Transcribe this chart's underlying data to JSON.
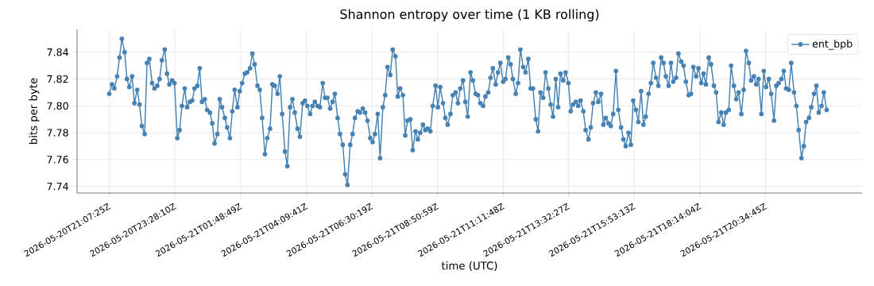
{
  "chart_data": {
    "type": "line",
    "title": "Shannon entropy over time (1 KB rolling)",
    "xlabel": "time (UTC)",
    "ylabel": "bits per byte",
    "xlim": [
      "2026-05-20T19:58",
      "2026-05-22T00:02"
    ],
    "ylim": [
      7.735,
      7.857
    ],
    "xticks": [
      {
        "value": "2026-05-20T21:07",
        "label": "2026-05-20T21:07:25Z"
      },
      {
        "value": "2026-05-20T23:28",
        "label": "2026-05-20T23:28:10Z"
      },
      {
        "value": "2026-05-21T01:49",
        "label": "2026-05-21T01:48:49Z"
      },
      {
        "value": "2026-05-21T04:10",
        "label": "2026-05-21T04:09:41Z"
      },
      {
        "value": "2026-05-21T06:30",
        "label": "2026-05-21T06:30:19Z"
      },
      {
        "value": "2026-05-21T08:51",
        "label": "2026-05-21T08:50:59Z"
      },
      {
        "value": "2026-05-21T11:12",
        "label": "2026-05-21T11:11:48Z"
      },
      {
        "value": "2026-05-21T13:32",
        "label": "2026-05-21T13:32:27Z"
      },
      {
        "value": "2026-05-21T15:53",
        "label": "2026-05-21T15:53:13Z"
      },
      {
        "value": "2026-05-21T18:14",
        "label": "2026-05-21T18:14:04Z"
      },
      {
        "value": "2026-05-21T20:35",
        "label": "2026-05-21T20:34:45Z"
      }
    ],
    "yticks": [
      7.74,
      7.76,
      7.78,
      {
        "value": 7.8,
        "label": "7.80"
      },
      7.82,
      7.84
    ],
    "grid": true,
    "legend": "top right",
    "marker": "circle",
    "line_style": "solid",
    "x": [
      "2026-05-20T21:07",
      "2026-05-20T21:13",
      "2026-05-20T21:18",
      "2026-05-20T21:24",
      "2026-05-20T21:29",
      "2026-05-20T21:34",
      "2026-05-20T21:40",
      "2026-05-20T21:45",
      "2026-05-20T21:50",
      "2026-05-20T21:56",
      "2026-05-20T22:01",
      "2026-05-20T22:07",
      "2026-05-20T22:12",
      "2026-05-20T22:17",
      "2026-05-20T22:23",
      "2026-05-20T22:28",
      "2026-05-20T22:33",
      "2026-05-20T22:39",
      "2026-05-20T22:44",
      "2026-05-20T22:50",
      "2026-05-20T22:55",
      "2026-05-20T23:00",
      "2026-05-20T23:06",
      "2026-05-20T23:11",
      "2026-05-20T23:16",
      "2026-05-20T23:22",
      "2026-05-20T23:27",
      "2026-05-20T23:33",
      "2026-05-20T23:38",
      "2026-05-20T23:43",
      "2026-05-20T23:49",
      "2026-05-20T23:54",
      "2026-05-21T00:00",
      "2026-05-21T00:05",
      "2026-05-21T00:10",
      "2026-05-21T00:16",
      "2026-05-21T00:21",
      "2026-05-21T00:26",
      "2026-05-21T00:32",
      "2026-05-21T00:37",
      "2026-05-21T00:43",
      "2026-05-21T00:48",
      "2026-05-21T00:53",
      "2026-05-21T00:59",
      "2026-05-21T01:04",
      "2026-05-21T01:09",
      "2026-05-21T01:15",
      "2026-05-21T01:20",
      "2026-05-21T01:26",
      "2026-05-21T01:31",
      "2026-05-21T01:36",
      "2026-05-21T01:42",
      "2026-05-21T01:47",
      "2026-05-21T01:52",
      "2026-05-21T01:58",
      "2026-05-21T02:03",
      "2026-05-21T02:09",
      "2026-05-21T02:14",
      "2026-05-21T02:19",
      "2026-05-21T02:25",
      "2026-05-21T02:30",
      "2026-05-21T02:35",
      "2026-05-21T02:41",
      "2026-05-21T02:46",
      "2026-05-21T02:52",
      "2026-05-21T02:57",
      "2026-05-21T03:02",
      "2026-05-21T03:08",
      "2026-05-21T03:13",
      "2026-05-21T03:18",
      "2026-05-21T03:24",
      "2026-05-21T03:29",
      "2026-05-21T03:35",
      "2026-05-21T03:40",
      "2026-05-21T03:45",
      "2026-05-21T03:51",
      "2026-05-21T03:56",
      "2026-05-21T04:02",
      "2026-05-21T04:07",
      "2026-05-21T04:12",
      "2026-05-21T04:18",
      "2026-05-21T04:23",
      "2026-05-21T04:28",
      "2026-05-21T04:34",
      "2026-05-21T04:39",
      "2026-05-21T04:45",
      "2026-05-21T04:50",
      "2026-05-21T04:55",
      "2026-05-21T05:01",
      "2026-05-21T05:06",
      "2026-05-21T05:11",
      "2026-05-21T05:17",
      "2026-05-21T05:22",
      "2026-05-21T05:28",
      "2026-05-21T05:33",
      "2026-05-21T05:38",
      "2026-05-21T05:44",
      "2026-05-21T05:49",
      "2026-05-21T05:54",
      "2026-05-21T06:00",
      "2026-05-21T06:05",
      "2026-05-21T06:11",
      "2026-05-21T06:16",
      "2026-05-21T06:21",
      "2026-05-21T06:27",
      "2026-05-21T06:32",
      "2026-05-21T06:37",
      "2026-05-21T06:43",
      "2026-05-21T06:48",
      "2026-05-21T06:54",
      "2026-05-21T06:59",
      "2026-05-21T07:04",
      "2026-05-21T07:10",
      "2026-05-21T07:15",
      "2026-05-21T07:21",
      "2026-05-21T07:26",
      "2026-05-21T07:31",
      "2026-05-21T07:37",
      "2026-05-21T07:42",
      "2026-05-21T07:47",
      "2026-05-21T07:53",
      "2026-05-21T07:58",
      "2026-05-21T08:04",
      "2026-05-21T08:09",
      "2026-05-21T08:14",
      "2026-05-21T08:20",
      "2026-05-21T08:25",
      "2026-05-21T08:30",
      "2026-05-21T08:36",
      "2026-05-21T08:41",
      "2026-05-21T08:47",
      "2026-05-21T08:52",
      "2026-05-21T08:57",
      "2026-05-21T09:03",
      "2026-05-21T09:08",
      "2026-05-21T09:13",
      "2026-05-21T09:19",
      "2026-05-21T09:24",
      "2026-05-21T09:30",
      "2026-05-21T09:35",
      "2026-05-21T09:40",
      "2026-05-21T09:46",
      "2026-05-21T09:51",
      "2026-05-21T09:56",
      "2026-05-21T10:02",
      "2026-05-21T10:07",
      "2026-05-21T10:13",
      "2026-05-21T10:18",
      "2026-05-21T10:23",
      "2026-05-21T10:29",
      "2026-05-21T10:34",
      "2026-05-21T10:40",
      "2026-05-21T10:45",
      "2026-05-21T10:50",
      "2026-05-21T10:56",
      "2026-05-21T11:01",
      "2026-05-21T11:06",
      "2026-05-21T11:12",
      "2026-05-21T11:17",
      "2026-05-21T11:23",
      "2026-05-21T11:28",
      "2026-05-21T11:33",
      "2026-05-21T11:39",
      "2026-05-21T11:44",
      "2026-05-21T11:49",
      "2026-05-21T11:55",
      "2026-05-21T12:00",
      "2026-05-21T12:06",
      "2026-05-21T12:11",
      "2026-05-21T12:16",
      "2026-05-21T12:22",
      "2026-05-21T12:27",
      "2026-05-21T12:32",
      "2026-05-21T12:38",
      "2026-05-21T12:43",
      "2026-05-21T12:49",
      "2026-05-21T12:54",
      "2026-05-21T12:59",
      "2026-05-21T13:05",
      "2026-05-21T13:10",
      "2026-05-21T13:15",
      "2026-05-21T13:21",
      "2026-05-21T13:26",
      "2026-05-21T13:32",
      "2026-05-21T13:37",
      "2026-05-21T13:42",
      "2026-05-21T13:48",
      "2026-05-21T13:53",
      "2026-05-21T13:58",
      "2026-05-21T14:04",
      "2026-05-21T14:09",
      "2026-05-21T14:15",
      "2026-05-21T14:20",
      "2026-05-21T14:25",
      "2026-05-21T14:31",
      "2026-05-21T14:36",
      "2026-05-21T14:42",
      "2026-05-21T14:47",
      "2026-05-21T14:52",
      "2026-05-21T14:58",
      "2026-05-21T15:03",
      "2026-05-21T15:08",
      "2026-05-21T15:14",
      "2026-05-21T15:19",
      "2026-05-21T15:25",
      "2026-05-21T15:30",
      "2026-05-21T15:35",
      "2026-05-21T15:41",
      "2026-05-21T15:46",
      "2026-05-21T15:51",
      "2026-05-21T15:57",
      "2026-05-21T16:02",
      "2026-05-21T16:08",
      "2026-05-21T16:13",
      "2026-05-21T16:18",
      "2026-05-21T16:24",
      "2026-05-21T16:29",
      "2026-05-21T16:34",
      "2026-05-21T16:40",
      "2026-05-21T16:45",
      "2026-05-21T16:51",
      "2026-05-21T16:56",
      "2026-05-21T17:01",
      "2026-05-21T17:07",
      "2026-05-21T17:12",
      "2026-05-21T17:17",
      "2026-05-21T17:23",
      "2026-05-21T17:28",
      "2026-05-21T17:34",
      "2026-05-21T17:39",
      "2026-05-21T17:44",
      "2026-05-21T17:50",
      "2026-05-21T17:55",
      "2026-05-21T18:00",
      "2026-05-21T18:06",
      "2026-05-21T18:11",
      "2026-05-21T18:17",
      "2026-05-21T18:22",
      "2026-05-21T18:27",
      "2026-05-21T18:33",
      "2026-05-21T18:38",
      "2026-05-21T18:44",
      "2026-05-21T18:49",
      "2026-05-21T18:54",
      "2026-05-21T19:00",
      "2026-05-21T19:05",
      "2026-05-21T19:10",
      "2026-05-21T19:16",
      "2026-05-21T19:21",
      "2026-05-21T19:27",
      "2026-05-21T19:32",
      "2026-05-21T19:37",
      "2026-05-21T19:43",
      "2026-05-21T19:48",
      "2026-05-21T19:53",
      "2026-05-21T19:59",
      "2026-05-21T20:04",
      "2026-05-21T20:10",
      "2026-05-21T20:15",
      "2026-05-21T20:20",
      "2026-05-21T20:26",
      "2026-05-21T20:31",
      "2026-05-21T20:36",
      "2026-05-21T20:42",
      "2026-05-21T20:47",
      "2026-05-21T20:53",
      "2026-05-21T20:58",
      "2026-05-21T21:03",
      "2026-05-21T21:09",
      "2026-05-21T21:14",
      "2026-05-21T21:19",
      "2026-05-21T21:25",
      "2026-05-21T21:30",
      "2026-05-21T21:36",
      "2026-05-21T21:41",
      "2026-05-21T21:46",
      "2026-05-21T21:52",
      "2026-05-21T21:57",
      "2026-05-21T22:02",
      "2026-05-21T22:08",
      "2026-05-21T22:13",
      "2026-05-21T22:19",
      "2026-05-21T22:24",
      "2026-05-21T22:29",
      "2026-05-21T22:35",
      "2026-05-21T22:40",
      "2026-05-21T22:46"
    ],
    "series": [
      {
        "name": "ent_bpb",
        "color": "#4682b4",
        "values": [
          7.809,
          7.816,
          7.813,
          7.822,
          7.836,
          7.85,
          7.84,
          7.82,
          7.814,
          7.822,
          7.802,
          7.812,
          7.801,
          7.785,
          7.779,
          7.832,
          7.835,
          7.817,
          7.813,
          7.815,
          7.82,
          7.834,
          7.842,
          7.824,
          7.816,
          7.819,
          7.817,
          7.776,
          7.782,
          7.8,
          7.813,
          7.799,
          7.803,
          7.804,
          7.813,
          7.815,
          7.828,
          7.803,
          7.805,
          7.797,
          7.795,
          7.787,
          7.772,
          7.779,
          7.805,
          7.799,
          7.791,
          7.784,
          7.776,
          7.796,
          7.812,
          7.799,
          7.811,
          7.817,
          7.824,
          7.825,
          7.828,
          7.839,
          7.831,
          7.815,
          7.812,
          7.791,
          7.764,
          7.776,
          7.783,
          7.816,
          7.815,
          7.809,
          7.822,
          7.794,
          7.766,
          7.755,
          7.799,
          7.805,
          7.795,
          7.783,
          7.777,
          7.802,
          7.804,
          7.8,
          7.794,
          7.8,
          7.803,
          7.8,
          7.799,
          7.817,
          7.806,
          7.806,
          7.798,
          7.803,
          7.809,
          7.791,
          7.779,
          7.771,
          7.749,
          7.741,
          7.771,
          7.779,
          7.791,
          7.796,
          7.795,
          7.798,
          7.795,
          7.789,
          7.776,
          7.773,
          7.779,
          7.794,
          7.761,
          7.799,
          7.808,
          7.829,
          7.823,
          7.842,
          7.837,
          7.807,
          7.813,
          7.808,
          7.778,
          7.789,
          7.79,
          7.767,
          7.781,
          7.775,
          7.78,
          7.786,
          7.782,
          7.783,
          7.781,
          7.8,
          7.815,
          7.799,
          7.814,
          7.802,
          7.791,
          7.786,
          7.794,
          7.808,
          7.81,
          7.802,
          7.813,
          7.819,
          7.803,
          7.792,
          7.825,
          7.819,
          7.809,
          7.808,
          7.802,
          7.8,
          7.807,
          7.81,
          7.821,
          7.828,
          7.816,
          7.825,
          7.832,
          7.818,
          7.82,
          7.836,
          7.831,
          7.82,
          7.809,
          7.817,
          7.842,
          7.829,
          7.825,
          7.835,
          7.813,
          7.813,
          7.79,
          7.781,
          7.81,
          7.806,
          7.825,
          7.813,
          7.801,
          7.792,
          7.82,
          7.799,
          7.824,
          7.819,
          7.825,
          7.817,
          7.796,
          7.801,
          7.803,
          7.8,
          7.804,
          7.796,
          7.782,
          7.775,
          7.784,
          7.802,
          7.81,
          7.803,
          7.809,
          7.786,
          7.791,
          7.787,
          7.785,
          7.794,
          7.826,
          7.797,
          7.784,
          7.775,
          7.77,
          7.78,
          7.771,
          7.804,
          7.797,
          7.788,
          7.811,
          7.786,
          7.792,
          7.809,
          7.817,
          7.832,
          7.821,
          7.815,
          7.836,
          7.832,
          7.822,
          7.815,
          7.832,
          7.818,
          7.821,
          7.839,
          7.833,
          7.83,
          7.818,
          7.808,
          7.809,
          7.829,
          7.822,
          7.828,
          7.817,
          7.824,
          7.816,
          7.836,
          7.831,
          7.815,
          7.81,
          7.788,
          7.795,
          7.786,
          7.795,
          7.797,
          7.83,
          7.815,
          7.805,
          7.81,
          7.794,
          7.812,
          7.841,
          7.832,
          7.819,
          7.822,
          7.816,
          7.82,
          7.794,
          7.826,
          7.814,
          7.82,
          7.809,
          7.789,
          7.815,
          7.817,
          7.82,
          7.826,
          7.813,
          7.812,
          7.832,
          7.81,
          7.8,
          7.782,
          7.761,
          7.77,
          7.788,
          7.791,
          7.799,
          7.809,
          7.815,
          7.795,
          7.8,
          7.81,
          7.797
        ]
      }
    ]
  }
}
